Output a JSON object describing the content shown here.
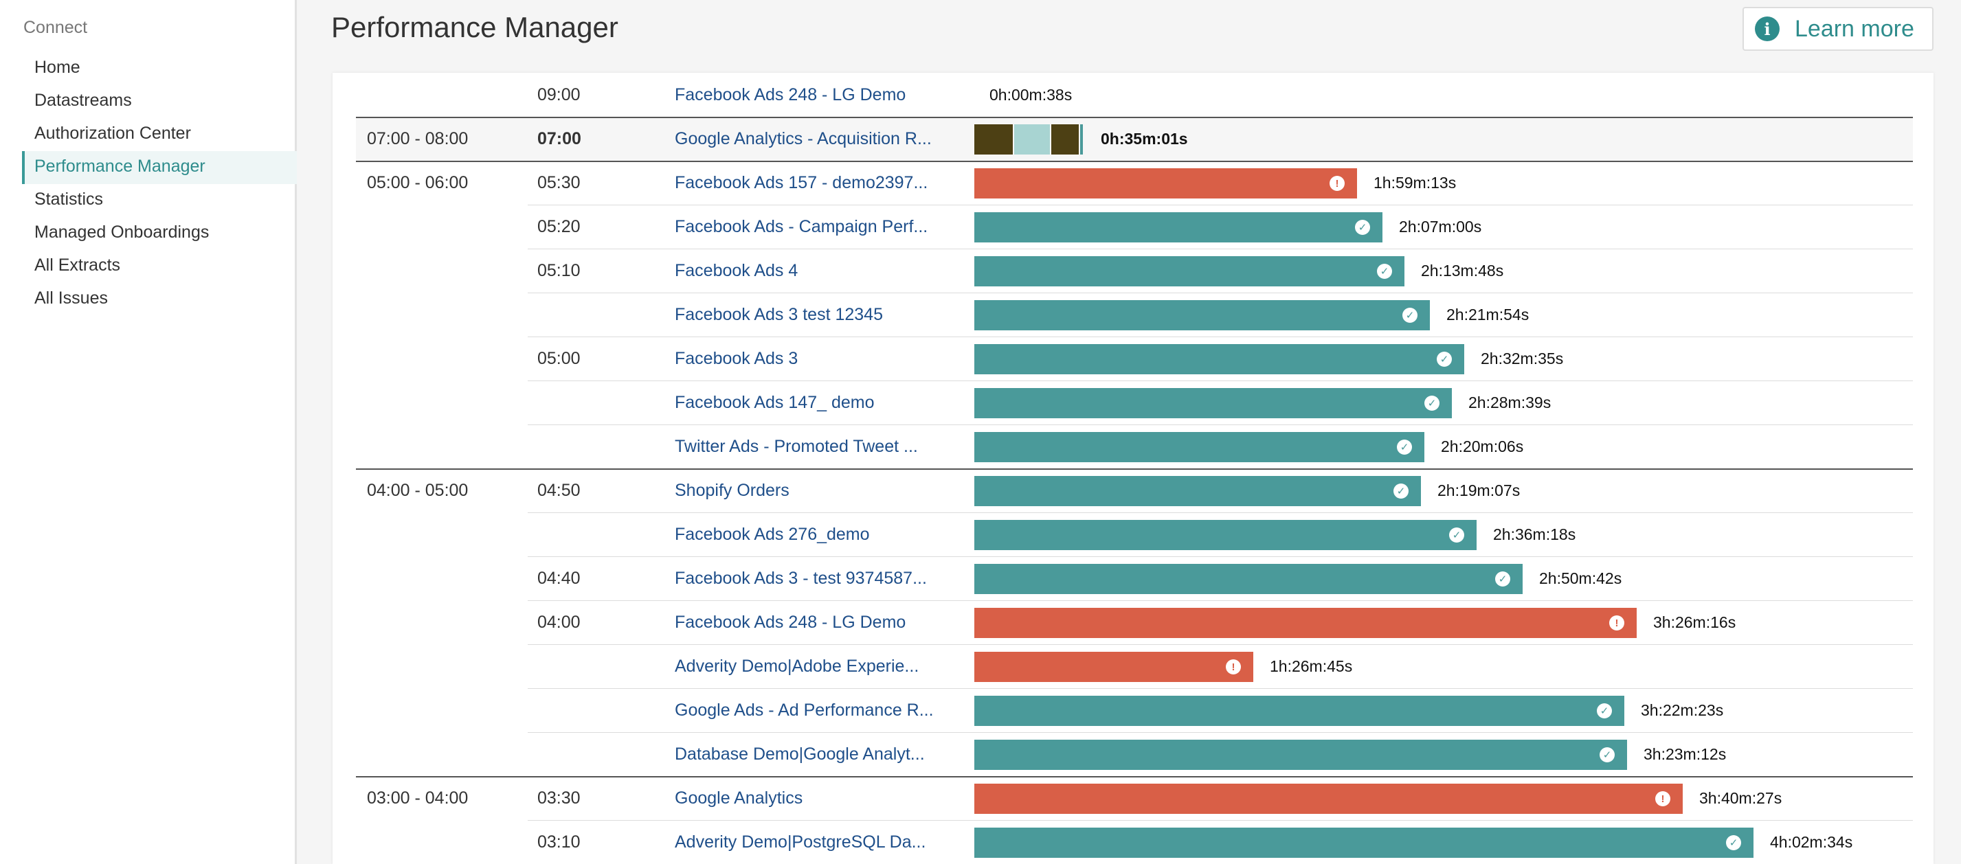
{
  "sidebar": {
    "title": "Connect",
    "items": [
      {
        "label": "Home",
        "name": "home"
      },
      {
        "label": "Datastreams",
        "name": "datastreams"
      },
      {
        "label": "Authorization Center",
        "name": "authorization-center"
      },
      {
        "label": "Performance Manager",
        "name": "performance-manager",
        "active": true
      },
      {
        "label": "Statistics",
        "name": "statistics"
      },
      {
        "label": "Managed Onboardings",
        "name": "managed-onboardings"
      },
      {
        "label": "All Extracts",
        "name": "all-extracts"
      },
      {
        "label": "All Issues",
        "name": "all-issues"
      }
    ]
  },
  "header": {
    "title": "Performance Manager",
    "learn_more": "Learn more",
    "info_icon": "i"
  },
  "colors": {
    "success": "#4a9a9a",
    "error": "#d95f47",
    "accent": "#2e8c8c",
    "segment_dark": "#4d4014",
    "segment_light": "#a8d4d2"
  },
  "status_glyphs": {
    "success": "✓",
    "error": "!"
  },
  "max_duration_seconds": 14554,
  "rows": [
    {
      "range": "",
      "time": "09:00",
      "name": "Facebook Ads 248 - LG Demo",
      "duration": "0h:00m:38s",
      "seconds": 38,
      "status": "none",
      "sep": false
    },
    {
      "range": "07:00 - 08:00",
      "time": "07:00",
      "name": "Google Analytics - Acquisition R...",
      "duration": "0h:35m:01s",
      "seconds": 2101,
      "status": "running",
      "sep": true,
      "highlight": true,
      "bold": true,
      "segments": [
        {
          "fraction": 0.36,
          "color": "dark"
        },
        {
          "fraction": 0.34,
          "color": "light"
        },
        {
          "fraction": 0.26,
          "color": "dark"
        },
        {
          "fraction": 0.04,
          "color": "teal"
        }
      ]
    },
    {
      "range": "05:00 - 06:00",
      "time": "05:30",
      "name": "Facebook Ads 157 - demo2397...",
      "duration": "1h:59m:13s",
      "seconds": 7153,
      "status": "error",
      "sep": true
    },
    {
      "range": "",
      "time": "05:20",
      "name": "Facebook Ads - Campaign Perf...",
      "duration": "2h:07m:00s",
      "seconds": 7620,
      "status": "success"
    },
    {
      "range": "",
      "time": "05:10",
      "name": "Facebook Ads 4",
      "duration": "2h:13m:48s",
      "seconds": 8028,
      "status": "success"
    },
    {
      "range": "",
      "time": "",
      "name": "Facebook Ads 3 test 12345",
      "duration": "2h:21m:54s",
      "seconds": 8514,
      "status": "success"
    },
    {
      "range": "",
      "time": "05:00",
      "name": "Facebook Ads 3",
      "duration": "2h:32m:35s",
      "seconds": 9155,
      "status": "success"
    },
    {
      "range": "",
      "time": "",
      "name": "Facebook Ads 147_ demo",
      "duration": "2h:28m:39s",
      "seconds": 8919,
      "status": "success"
    },
    {
      "range": "",
      "time": "",
      "name": "Twitter Ads - Promoted Tweet ...",
      "duration": "2h:20m:06s",
      "seconds": 8406,
      "status": "success"
    },
    {
      "range": "04:00 - 05:00",
      "time": "04:50",
      "name": "Shopify Orders",
      "duration": "2h:19m:07s",
      "seconds": 8347,
      "status": "success",
      "sep": true
    },
    {
      "range": "",
      "time": "",
      "name": "Facebook Ads 276_demo",
      "duration": "2h:36m:18s",
      "seconds": 9378,
      "status": "success"
    },
    {
      "range": "",
      "time": "04:40",
      "name": "Facebook Ads 3 - test 9374587...",
      "duration": "2h:50m:42s",
      "seconds": 10242,
      "status": "success"
    },
    {
      "range": "",
      "time": "04:00",
      "name": "Facebook Ads 248 - LG Demo",
      "duration": "3h:26m:16s",
      "seconds": 12376,
      "status": "error"
    },
    {
      "range": "",
      "time": "",
      "name": "Adverity Demo|Adobe Experie...",
      "duration": "1h:26m:45s",
      "seconds": 5205,
      "status": "error"
    },
    {
      "range": "",
      "time": "",
      "name": "Google Ads - Ad Performance R...",
      "duration": "3h:22m:23s",
      "seconds": 12143,
      "status": "success"
    },
    {
      "range": "",
      "time": "",
      "name": "Database Demo|Google Analyt...",
      "duration": "3h:23m:12s",
      "seconds": 12192,
      "status": "success"
    },
    {
      "range": "03:00 - 04:00",
      "time": "03:30",
      "name": "Google Analytics",
      "duration": "3h:40m:27s",
      "seconds": 13227,
      "status": "error",
      "sep": true
    },
    {
      "range": "",
      "time": "03:10",
      "name": "Adverity Demo|PostgreSQL Da...",
      "duration": "4h:02m:34s",
      "seconds": 14554,
      "status": "success"
    }
  ]
}
